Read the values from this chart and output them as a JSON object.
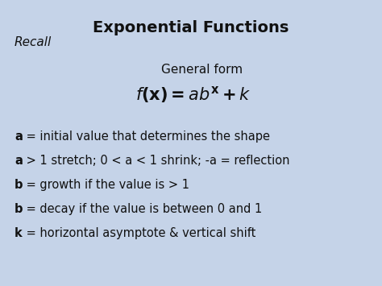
{
  "title": "Exponential Functions",
  "title_fontsize": 14,
  "title_fontweight": "bold",
  "background_color": "#c5d3e8",
  "recall_text": "Recall",
  "recall_fontsize": 11,
  "general_form_label": "General form",
  "general_form_fontsize": 11,
  "formula_fontsize": 15,
  "bullet_lines": [
    {
      "bold_part": "a",
      "rest": " = initial value that determines the shape"
    },
    {
      "bold_part": "a",
      "rest": " > 1 stretch; 0 < a < 1 shrink; -a = reflection"
    },
    {
      "bold_part": "b",
      "rest": " = growth if the value is > 1"
    },
    {
      "bold_part": "b",
      "rest": " = decay if the value is between 0 and 1"
    },
    {
      "bold_part": "k",
      "rest": " = horizontal asymptote & vertical shift"
    }
  ],
  "bullet_fontsize": 10.5,
  "text_color": "#111111"
}
